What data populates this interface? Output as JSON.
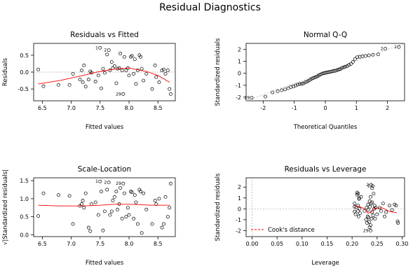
{
  "figure": {
    "title": "Residual Diagnostics"
  },
  "chart_data": [
    {
      "type": "scatter",
      "title": "Residuals vs Fitted",
      "xlabel": "Fitted values",
      "ylabel": "Residuals",
      "xlim": [
        6.35,
        8.8
      ],
      "ylim": [
        -0.85,
        0.85
      ],
      "xticks": [
        6.5,
        7.0,
        7.5,
        8.0,
        8.5
      ],
      "xtick_labels": [
        "6.5",
        "7.0",
        "7.5",
        "8.0",
        "8.5"
      ],
      "yticks": [
        -0.5,
        0.0,
        0.5
      ],
      "ytick_labels": [
        "-0.5",
        "0.0",
        "0.5"
      ],
      "points": [
        [
          6.43,
          0.08
        ],
        [
          6.52,
          -0.42
        ],
        [
          6.78,
          -0.38
        ],
        [
          6.97,
          -0.38
        ],
        [
          7.03,
          -0.05
        ],
        [
          7.15,
          -0.22
        ],
        [
          7.18,
          0.05
        ],
        [
          7.2,
          -0.3
        ],
        [
          7.22,
          0.2
        ],
        [
          7.25,
          -0.43
        ],
        [
          7.3,
          -0.22
        ],
        [
          7.33,
          0.02
        ],
        [
          7.35,
          -0.02
        ],
        [
          7.42,
          -0.28
        ],
        [
          7.47,
          -0.1
        ],
        [
          7.5,
          0.72
        ],
        [
          7.52,
          -0.48
        ],
        [
          7.55,
          0.1
        ],
        [
          7.58,
          -0.02
        ],
        [
          7.62,
          0.52
        ],
        [
          7.65,
          0.65
        ],
        [
          7.67,
          0.05
        ],
        [
          7.7,
          0.3
        ],
        [
          7.72,
          0.12
        ],
        [
          7.75,
          0.18
        ],
        [
          7.78,
          -0.33
        ],
        [
          7.8,
          0.1
        ],
        [
          7.83,
          0.12
        ],
        [
          7.85,
          0.55
        ],
        [
          7.88,
          0.05
        ],
        [
          7.9,
          -0.65
        ],
        [
          7.92,
          0.45
        ],
        [
          7.95,
          0.05
        ],
        [
          7.98,
          0.12
        ],
        [
          8.0,
          -0.1
        ],
        [
          8.03,
          0.45
        ],
        [
          8.05,
          0.48
        ],
        [
          8.08,
          -0.05
        ],
        [
          8.1,
          0.38
        ],
        [
          8.12,
          -0.35
        ],
        [
          8.15,
          0.05
        ],
        [
          8.18,
          0.5
        ],
        [
          8.2,
          0.45
        ],
        [
          8.22,
          0.1
        ],
        [
          8.25,
          -0.25
        ],
        [
          8.3,
          -0.05
        ],
        [
          8.4,
          -0.5
        ],
        [
          8.45,
          0.2
        ],
        [
          8.47,
          -0.15
        ],
        [
          8.52,
          -0.3
        ],
        [
          8.57,
          0.05
        ],
        [
          8.6,
          0.08
        ],
        [
          8.63,
          -0.05
        ],
        [
          8.67,
          0.05
        ],
        [
          8.7,
          -0.5
        ],
        [
          8.72,
          -0.65
        ]
      ],
      "labeled_points": [
        {
          "label": "1",
          "x": 7.5,
          "y": 0.72
        },
        {
          "label": "2",
          "x": 7.65,
          "y": 0.65
        },
        {
          "label": "29",
          "x": 7.9,
          "y": -0.65
        }
      ],
      "smooth": [
        [
          6.43,
          -0.35
        ],
        [
          6.8,
          -0.25
        ],
        [
          7.2,
          -0.1
        ],
        [
          7.5,
          0.02
        ],
        [
          7.8,
          0.1
        ],
        [
          8.0,
          0.12
        ],
        [
          8.3,
          0.02
        ],
        [
          8.5,
          -0.1
        ],
        [
          8.7,
          -0.3
        ]
      ],
      "smooth_color": "#ff0000",
      "hline": 0
    },
    {
      "type": "scatter",
      "title": "Normal Q-Q",
      "xlabel": "Theoretical Quantiles",
      "ylabel": "Standardized residuals",
      "xlim": [
        -2.55,
        2.55
      ],
      "ylim": [
        -2.3,
        2.5
      ],
      "xticks": [
        -2,
        -1,
        0,
        1,
        2
      ],
      "xtick_labels": [
        "-2",
        "-1",
        "0",
        "1",
        "2"
      ],
      "yticks": [
        -2,
        -1,
        0,
        1,
        2
      ],
      "ytick_labels": [
        "-2",
        "-1",
        "0",
        "1",
        "2"
      ],
      "n_points": 56,
      "points_y_sorted": [
        -2.05,
        -1.95,
        -1.6,
        -1.5,
        -1.42,
        -1.35,
        -1.25,
        -1.15,
        -1.1,
        -1.02,
        -0.95,
        -0.9,
        -0.88,
        -0.85,
        -0.75,
        -0.7,
        -0.62,
        -0.55,
        -0.45,
        -0.4,
        -0.35,
        -0.3,
        -0.25,
        -0.15,
        -0.1,
        -0.05,
        0.0,
        0.02,
        0.05,
        0.08,
        0.1,
        0.12,
        0.15,
        0.18,
        0.2,
        0.22,
        0.28,
        0.32,
        0.35,
        0.45,
        0.5,
        0.55,
        0.6,
        0.7,
        0.78,
        0.95,
        1.2,
        1.35,
        1.38,
        1.42,
        1.45,
        1.5,
        1.55,
        1.58,
        2.05,
        2.2
      ],
      "labeled_points": [
        {
          "label": "1",
          "index": 55
        },
        {
          "label": "2",
          "index": 54
        },
        {
          "label": "29",
          "index": 0
        }
      ]
    },
    {
      "type": "scatter",
      "title": "Scale-Location",
      "xlabel": "Fitted values",
      "ylabel": "√|Standardized residuals|",
      "xlim": [
        6.35,
        8.8
      ],
      "ylim": [
        -0.05,
        1.58
      ],
      "xticks": [
        6.5,
        7.0,
        7.5,
        8.0,
        8.5
      ],
      "xtick_labels": [
        "6.5",
        "7.0",
        "7.5",
        "8.0",
        "8.5"
      ],
      "yticks": [
        0.0,
        0.5,
        1.0,
        1.5
      ],
      "ytick_labels": [
        "0.0",
        "0.5",
        "1.0",
        "1.5"
      ],
      "points": [
        [
          6.43,
          0.52
        ],
        [
          6.52,
          1.15
        ],
        [
          6.78,
          1.1
        ],
        [
          6.97,
          1.08
        ],
        [
          7.03,
          0.3
        ],
        [
          7.15,
          0.8
        ],
        [
          7.18,
          0.85
        ],
        [
          7.2,
          0.95
        ],
        [
          7.22,
          0.75
        ],
        [
          7.25,
          1.15
        ],
        [
          7.3,
          0.2
        ],
        [
          7.33,
          0.1
        ],
        [
          7.35,
          0.85
        ],
        [
          7.42,
          0.9
        ],
        [
          7.47,
          0.55
        ],
        [
          7.5,
          1.48
        ],
        [
          7.52,
          1.2
        ],
        [
          7.55,
          0.12
        ],
        [
          7.58,
          0.65
        ],
        [
          7.62,
          1.25
        ],
        [
          7.65,
          1.45
        ],
        [
          7.67,
          0.55
        ],
        [
          7.7,
          0.65
        ],
        [
          7.72,
          0.95
        ],
        [
          7.75,
          1.05
        ],
        [
          7.78,
          1.2
        ],
        [
          7.8,
          0.7
        ],
        [
          7.83,
          0.85
        ],
        [
          7.85,
          1.3
        ],
        [
          7.88,
          0.45
        ],
        [
          7.9,
          1.42
        ],
        [
          7.92,
          1.15
        ],
        [
          7.95,
          0.5
        ],
        [
          7.98,
          0.75
        ],
        [
          8.0,
          0.55
        ],
        [
          8.03,
          1.2
        ],
        [
          8.05,
          1.18
        ],
        [
          8.08,
          0.45
        ],
        [
          8.1,
          1.1
        ],
        [
          8.12,
          0.9
        ],
        [
          8.15,
          0.3
        ],
        [
          8.18,
          1.25
        ],
        [
          8.2,
          1.2
        ],
        [
          8.22,
          0.05
        ],
        [
          8.25,
          1.15
        ],
        [
          8.3,
          0.7
        ],
        [
          8.4,
          0.3
        ],
        [
          8.45,
          0.95
        ],
        [
          8.47,
          0.85
        ],
        [
          8.52,
          1.0
        ],
        [
          8.57,
          0.2
        ],
        [
          8.6,
          0.3
        ],
        [
          8.63,
          1.05
        ],
        [
          8.67,
          0.5
        ],
        [
          8.7,
          0.75
        ],
        [
          8.72,
          1.42
        ]
      ],
      "labeled_points": [
        {
          "label": "1",
          "x": 7.5,
          "y": 1.48
        },
        {
          "label": "2",
          "x": 7.65,
          "y": 1.45
        },
        {
          "label": "29",
          "x": 7.9,
          "y": 1.42
        }
      ],
      "smooth": [
        [
          6.43,
          0.82
        ],
        [
          6.8,
          0.8
        ],
        [
          7.2,
          0.8
        ],
        [
          7.5,
          0.82
        ],
        [
          7.8,
          0.85
        ],
        [
          8.1,
          0.84
        ],
        [
          8.4,
          0.82
        ],
        [
          8.7,
          0.82
        ]
      ],
      "smooth_color": "#ff0000"
    },
    {
      "type": "scatter",
      "title": "Residuals vs Leverage",
      "xlabel": "Leverage",
      "ylabel": "Standardized residuals",
      "xlim": [
        -0.012,
        0.305
      ],
      "ylim": [
        -2.55,
        2.85
      ],
      "xticks": [
        0.0,
        0.05,
        0.1,
        0.15,
        0.2,
        0.25,
        0.3
      ],
      "xtick_labels": [
        "0.00",
        "0.05",
        "0.10",
        "0.15",
        "0.20",
        "0.25",
        "0.30"
      ],
      "yticks": [
        -2,
        -1,
        0,
        1,
        2
      ],
      "ytick_labels": [
        "-2",
        "-1",
        "0",
        "1",
        "2"
      ],
      "points": [
        [
          0.205,
          0.5
        ],
        [
          0.205,
          0.2
        ],
        [
          0.205,
          -0.25
        ],
        [
          0.207,
          -0.5
        ],
        [
          0.208,
          0.15
        ],
        [
          0.21,
          1.3
        ],
        [
          0.21,
          1.5
        ],
        [
          0.212,
          1.4
        ],
        [
          0.212,
          0.3
        ],
        [
          0.212,
          -0.2
        ],
        [
          0.213,
          -0.7
        ],
        [
          0.214,
          0.9
        ],
        [
          0.214,
          1.0
        ],
        [
          0.215,
          0.0
        ],
        [
          0.216,
          -0.4
        ],
        [
          0.218,
          1.1
        ],
        [
          0.225,
          -0.2
        ],
        [
          0.228,
          -1.0
        ],
        [
          0.229,
          0.1
        ],
        [
          0.23,
          -1.3
        ],
        [
          0.231,
          -0.7
        ],
        [
          0.232,
          0.4
        ],
        [
          0.232,
          -0.1
        ],
        [
          0.233,
          -0.8
        ],
        [
          0.234,
          -1.2
        ],
        [
          0.235,
          0.7
        ],
        [
          0.235,
          -1.7
        ],
        [
          0.236,
          0.2
        ],
        [
          0.237,
          -2.0
        ],
        [
          0.237,
          -1.5
        ],
        [
          0.237,
          1.1
        ],
        [
          0.238,
          2.2
        ],
        [
          0.238,
          0.5
        ],
        [
          0.239,
          -0.9
        ],
        [
          0.24,
          1.9
        ],
        [
          0.24,
          0.6
        ],
        [
          0.24,
          -0.3
        ],
        [
          0.241,
          2.1
        ],
        [
          0.242,
          -0.6
        ],
        [
          0.243,
          1.4
        ],
        [
          0.244,
          0.0
        ],
        [
          0.245,
          0.3
        ],
        [
          0.246,
          -0.9
        ],
        [
          0.247,
          0.1
        ],
        [
          0.25,
          -0.5
        ],
        [
          0.255,
          0.1
        ],
        [
          0.258,
          -0.2
        ],
        [
          0.262,
          0.5
        ],
        [
          0.265,
          -0.7
        ],
        [
          0.268,
          -0.3
        ],
        [
          0.275,
          0.3
        ],
        [
          0.28,
          -0.1
        ],
        [
          0.285,
          0.4
        ],
        [
          0.291,
          -1.15
        ],
        [
          0.292,
          -1.3
        ],
        [
          0.288,
          0.3
        ]
      ],
      "labeled_points": [
        {
          "label": "2",
          "x": 0.238,
          "y": 2.2
        },
        {
          "label": "1",
          "x": 0.24,
          "y": 2.1
        },
        {
          "label": "29",
          "x": 0.237,
          "y": -2.0
        }
      ],
      "smooth": [
        [
          0.205,
          0.3
        ],
        [
          0.215,
          0.2
        ],
        [
          0.225,
          0.0
        ],
        [
          0.232,
          -0.4
        ],
        [
          0.238,
          -0.3
        ],
        [
          0.245,
          0.05
        ],
        [
          0.26,
          0.1
        ],
        [
          0.275,
          -0.25
        ],
        [
          0.29,
          -0.35
        ]
      ],
      "smooth_color": "#ff0000",
      "legend": {
        "label": "Cook's distance",
        "position": "bottom-left",
        "line_color": "#ff0000",
        "line_style": "dashed"
      }
    }
  ]
}
